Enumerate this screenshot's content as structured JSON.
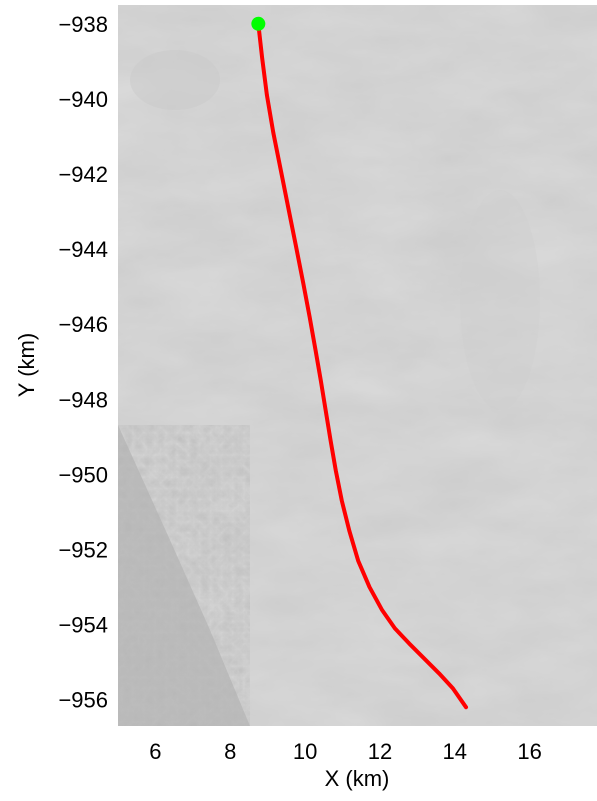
{
  "chart_data": {
    "type": "line",
    "title": "",
    "xlabel": "X (km)",
    "ylabel": "Y (km)",
    "xlim": [
      5.0,
      17.8
    ],
    "ylim": [
      -956.7,
      -937.5
    ],
    "xticks": [
      6,
      8,
      10,
      12,
      14,
      16
    ],
    "yticks": [
      -938,
      -940,
      -942,
      -944,
      -946,
      -948,
      -950,
      -952,
      -954,
      -956
    ],
    "grid": false,
    "legend": "none",
    "background": "grayscale satellite imagery of ice surface",
    "series": [
      {
        "color": "#ff0000",
        "x": [
          8.75,
          8.85,
          8.98,
          9.15,
          9.35,
          9.55,
          9.75,
          9.95,
          10.12,
          10.28,
          10.42,
          10.55,
          10.68,
          10.82,
          10.98,
          11.18,
          11.42,
          11.72,
          12.05,
          12.4,
          12.78,
          13.18,
          13.58,
          13.95,
          14.3
        ],
        "y": [
          -938.0,
          -938.9,
          -939.9,
          -940.9,
          -941.9,
          -942.9,
          -943.9,
          -944.9,
          -945.8,
          -946.7,
          -947.5,
          -948.3,
          -949.1,
          -949.9,
          -950.7,
          -951.5,
          -952.3,
          -953.0,
          -953.6,
          -954.1,
          -954.5,
          -954.9,
          -955.3,
          -955.7,
          -956.2
        ]
      }
    ],
    "markers": [
      {
        "x": 8.75,
        "y": -938.0,
        "color": "#00ff00",
        "shape": "circle"
      }
    ]
  }
}
